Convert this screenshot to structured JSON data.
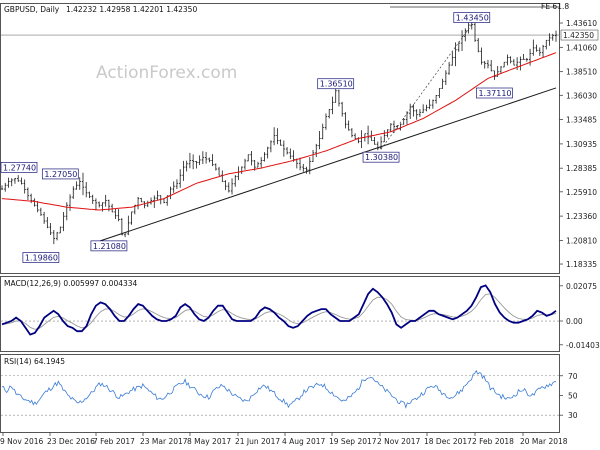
{
  "chart_data": [
    {
      "type": "candlestick",
      "title": "GBPUSD, Daily",
      "ohlc_label": "1.42232 1.42958 1.42201 1.42350",
      "watermark": "ActionForex.com",
      "fib_label": "FE 61.8",
      "last_price_label": "1.42350",
      "last_price": 1.4235,
      "ylim": [
        1.175,
        1.455
      ],
      "yticks": [
        "1.43610",
        "1.41060",
        "1.38510",
        "1.36030",
        "1.33485",
        "1.30935",
        "1.28385",
        "1.25910",
        "1.23360",
        "1.20810",
        "1.18335"
      ],
      "ytick_values": [
        1.4361,
        1.4106,
        1.3851,
        1.3603,
        1.33485,
        1.30935,
        1.28385,
        1.2591,
        1.2336,
        1.2081,
        1.18335
      ],
      "x_dates": [
        "9 Nov 2016",
        "23 Dec 2016",
        "7 Feb 2017",
        "23 Mar 2017",
        "8 May 2017",
        "21 Jun 2017",
        "4 Aug 2017",
        "19 Sep 2017",
        "2 Nov 2017",
        "18 Dec 2017",
        "2 Feb 2018",
        "20 Mar 2018"
      ],
      "price_path": [
        [
          0,
          1.262
        ],
        [
          2,
          1.27
        ],
        [
          4,
          1.273
        ],
        [
          6,
          1.268
        ],
        [
          8,
          1.255
        ],
        [
          10,
          1.245
        ],
        [
          12,
          1.235
        ],
        [
          14,
          1.222
        ],
        [
          16,
          1.21
        ],
        [
          18,
          1.222
        ],
        [
          20,
          1.245
        ],
        [
          22,
          1.262
        ],
        [
          24,
          1.27
        ],
        [
          26,
          1.258
        ],
        [
          28,
          1.25
        ],
        [
          30,
          1.245
        ],
        [
          32,
          1.25
        ],
        [
          34,
          1.238
        ],
        [
          36,
          1.23
        ],
        [
          37,
          1.214
        ],
        [
          38,
          1.215
        ],
        [
          40,
          1.238
        ],
        [
          42,
          1.252
        ],
        [
          44,
          1.245
        ],
        [
          46,
          1.25
        ],
        [
          48,
          1.255
        ],
        [
          50,
          1.248
        ],
        [
          52,
          1.262
        ],
        [
          54,
          1.268
        ],
        [
          56,
          1.285
        ],
        [
          58,
          1.292
        ],
        [
          60,
          1.29
        ],
        [
          62,
          1.295
        ],
        [
          64,
          1.292
        ],
        [
          66,
          1.283
        ],
        [
          68,
          1.27
        ],
        [
          70,
          1.26
        ],
        [
          72,
          1.275
        ],
        [
          74,
          1.285
        ],
        [
          76,
          1.298
        ],
        [
          78,
          1.285
        ],
        [
          80,
          1.292
        ],
        [
          82,
          1.305
        ],
        [
          84,
          1.318
        ],
        [
          86,
          1.308
        ],
        [
          88,
          1.3
        ],
        [
          90,
          1.293
        ],
        [
          92,
          1.285
        ],
        [
          94,
          1.282
        ],
        [
          96,
          1.3
        ],
        [
          98,
          1.315
        ],
        [
          100,
          1.338
        ],
        [
          102,
          1.353
        ],
        [
          103,
          1.365
        ],
        [
          104,
          1.352
        ],
        [
          106,
          1.33
        ],
        [
          108,
          1.318
        ],
        [
          110,
          1.312
        ],
        [
          112,
          1.32
        ],
        [
          114,
          1.313
        ],
        [
          116,
          1.305
        ],
        [
          118,
          1.318
        ],
        [
          120,
          1.33
        ],
        [
          122,
          1.325
        ],
        [
          124,
          1.335
        ],
        [
          126,
          1.348
        ],
        [
          128,
          1.34
        ],
        [
          130,
          1.345
        ],
        [
          132,
          1.35
        ],
        [
          134,
          1.36
        ],
        [
          136,
          1.375
        ],
        [
          138,
          1.392
        ],
        [
          140,
          1.408
        ],
        [
          142,
          1.422
        ],
        [
          144,
          1.434
        ],
        [
          145,
          1.4345
        ],
        [
          146,
          1.418
        ],
        [
          148,
          1.395
        ],
        [
          150,
          1.392
        ],
        [
          152,
          1.38
        ],
        [
          154,
          1.39
        ],
        [
          156,
          1.4
        ],
        [
          158,
          1.392
        ],
        [
          160,
          1.398
        ],
        [
          162,
          1.398
        ],
        [
          164,
          1.41
        ],
        [
          166,
          1.405
        ],
        [
          168,
          1.418
        ],
        [
          170,
          1.423
        ],
        [
          171,
          1.4235
        ]
      ],
      "series": [
        {
          "name": "price",
          "color": "#1a1a1a"
        },
        {
          "name": "sma55",
          "color": "#e01010"
        },
        {
          "name": "trendline",
          "color": "#1a1a1a"
        }
      ],
      "sma_path": [
        [
          0,
          1.252
        ],
        [
          10,
          1.249
        ],
        [
          20,
          1.243
        ],
        [
          30,
          1.24
        ],
        [
          40,
          1.243
        ],
        [
          50,
          1.252
        ],
        [
          60,
          1.268
        ],
        [
          70,
          1.278
        ],
        [
          80,
          1.284
        ],
        [
          90,
          1.292
        ],
        [
          100,
          1.302
        ],
        [
          110,
          1.315
        ],
        [
          120,
          1.322
        ],
        [
          130,
          1.336
        ],
        [
          140,
          1.355
        ],
        [
          150,
          1.378
        ],
        [
          160,
          1.391
        ],
        [
          171,
          1.405
        ]
      ],
      "trendline": [
        [
          28,
          1.205
        ],
        [
          171,
          1.368
        ]
      ],
      "annotations": [
        {
          "label": "1.27740",
          "x": 0,
          "y": 1.2774
        },
        {
          "label": "1.27050",
          "x": 18,
          "y": 1.2705
        },
        {
          "label": "1.19860",
          "x": 12,
          "y": 1.1986
        },
        {
          "label": "1.21080",
          "x": 33,
          "y": 1.2108
        },
        {
          "label": "1.36510",
          "x": 103,
          "y": 1.3651
        },
        {
          "label": "1.30380",
          "x": 117,
          "y": 1.3038
        },
        {
          "label": "1.43450",
          "x": 145,
          "y": 1.4345
        },
        {
          "label": "1.37110",
          "x": 152,
          "y": 1.3711
        }
      ]
    },
    {
      "type": "line",
      "title": "MACD(12,26,9) 0.005997 0.004334",
      "yticks": [
        "0.02075",
        "0.00",
        "-0.01403"
      ],
      "ytick_values": [
        0.02075,
        0.0,
        -0.01403
      ],
      "ylim": [
        -0.0165,
        0.023
      ],
      "series": [
        {
          "name": "macd",
          "color": "#000080",
          "values": [
            -0.002,
            -0.001,
            0.0,
            0.002,
            0.0,
            -0.004,
            -0.008,
            -0.007,
            -0.003,
            0.002,
            0.004,
            0.006,
            0.004,
            0.0,
            -0.003,
            -0.004,
            -0.006,
            -0.006,
            -0.003,
            0.004,
            0.009,
            0.011,
            0.01,
            0.007,
            0.003,
            0.0,
            0.0,
            0.003,
            0.007,
            0.01,
            0.009,
            0.006,
            0.003,
            0.001,
            0.0,
            0.0,
            0.001,
            0.003,
            0.008,
            0.01,
            0.008,
            0.004,
            0.001,
            0.0,
            0.002,
            0.006,
            0.009,
            0.009,
            0.005,
            0.001,
            0.0,
            0.0,
            0.0,
            0.0,
            0.002,
            0.006,
            0.008,
            0.007,
            0.005,
            0.002,
            0.0,
            -0.003,
            -0.004,
            -0.003,
            0.0,
            0.003,
            0.005,
            0.006,
            0.007,
            0.007,
            0.004,
            0.002,
            0.0,
            0.0,
            0.0,
            0.002,
            0.004,
            0.01,
            0.016,
            0.019,
            0.017,
            0.014,
            0.01,
            0.005,
            -0.002,
            -0.004,
            -0.002,
            0.0,
            0.0,
            0.002,
            0.004,
            0.006,
            0.006,
            0.004,
            0.003,
            0.002,
            0.001,
            0.002,
            0.004,
            0.006,
            0.009,
            0.014,
            0.02,
            0.021,
            0.017,
            0.01,
            0.005,
            0.002,
            0.0,
            -0.001,
            -0.001,
            0.0,
            0.001,
            0.003,
            0.006,
            0.005,
            0.003,
            0.004,
            0.006
          ]
        },
        {
          "name": "signal",
          "color": "#9a9a9a"
        }
      ]
    },
    {
      "type": "line",
      "title": "RSI(14) 64.1945",
      "yticks": [
        "70",
        "50",
        "30"
      ],
      "ytick_values": [
        70,
        50,
        30
      ],
      "ylim": [
        15,
        88
      ],
      "series": [
        {
          "name": "rsi",
          "color": "#3a7bd5",
          "values": [
            58,
            55,
            60,
            52,
            48,
            46,
            44,
            42,
            46,
            52,
            56,
            60,
            63,
            56,
            50,
            46,
            42,
            44,
            48,
            52,
            58,
            62,
            60,
            56,
            52,
            48,
            50,
            54,
            56,
            58,
            60,
            56,
            52,
            48,
            46,
            50,
            54,
            58,
            62,
            64,
            60,
            56,
            52,
            50,
            48,
            54,
            58,
            60,
            56,
            52,
            48,
            46,
            44,
            48,
            54,
            58,
            60,
            56,
            52,
            48,
            44,
            40,
            42,
            46,
            52,
            56,
            58,
            60,
            62,
            58,
            54,
            50,
            46,
            44,
            48,
            52,
            58,
            66,
            70,
            68,
            62,
            58,
            54,
            50,
            46,
            42,
            40,
            44,
            46,
            50,
            54,
            58,
            60,
            56,
            52,
            50,
            48,
            52,
            56,
            62,
            68,
            74,
            72,
            66,
            58,
            54,
            50,
            48,
            46,
            50,
            54,
            56,
            52,
            50,
            54,
            58,
            60,
            62,
            64
          ]
        }
      ]
    }
  ]
}
